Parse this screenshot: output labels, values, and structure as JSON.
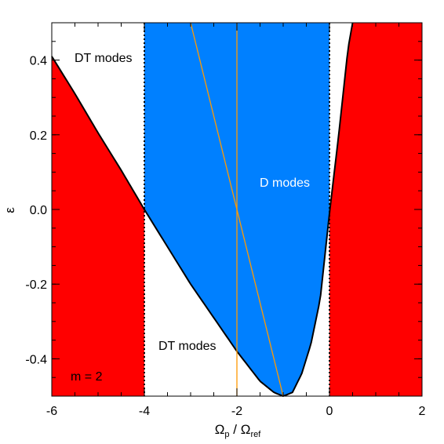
{
  "chart_data": {
    "type": "area",
    "title": "",
    "xlabel": {
      "main": "Ω",
      "sub1": "p",
      "mid": " / Ω",
      "sub2": "ref"
    },
    "ylabel": "ε",
    "xlim": [
      -6,
      2
    ],
    "ylim": [
      -0.5,
      0.5
    ],
    "x_ticks": [
      -6,
      -4,
      -2,
      0,
      2
    ],
    "x_tick_labels": [
      "-6",
      "-4",
      "-2",
      "0",
      "2"
    ],
    "y_ticks": [
      -0.4,
      -0.2,
      0.0,
      0.2,
      0.4
    ],
    "y_tick_labels": [
      "-0.4",
      "-0.2",
      "0.0",
      "0.2",
      "0.4"
    ],
    "boundary_curve": {
      "name": "",
      "x": [
        -6.0,
        -5.5,
        -5.0,
        -4.5,
        -4.0,
        -3.5,
        -3.0,
        -2.5,
        -2.0,
        -1.5,
        -1.2,
        -1.0,
        -0.8,
        -0.6,
        -0.4,
        -0.2,
        0.0,
        0.2,
        0.4,
        0.5
      ],
      "y": [
        0.41,
        0.31,
        0.205,
        0.105,
        0.0,
        -0.1,
        -0.2,
        -0.29,
        -0.38,
        -0.46,
        -0.49,
        -0.5,
        -0.49,
        -0.44,
        -0.36,
        -0.24,
        -0.01,
        0.2,
        0.43,
        0.5
      ]
    },
    "regions": [
      {
        "label": "",
        "color": "#ff0000",
        "description_polygon": "left of x=-4 below curve"
      },
      {
        "label": "",
        "color": "#ff0000",
        "description_polygon": "right of x=0 below curve"
      },
      {
        "label": "D modes",
        "color": "#0080ff"
      },
      {
        "label": "DT modes",
        "color": "#ffffff"
      }
    ],
    "vertical_dotted_lines": [
      -4,
      0
    ],
    "orange_vertical_line": -2,
    "orange_diagonal_line": {
      "x": [
        -3.0,
        -1.0
      ],
      "y": [
        0.5,
        -0.5
      ]
    },
    "annotations": {
      "dt_top": "DT modes",
      "dt_bottom": "DT modes",
      "d_modes": "D modes",
      "m_label": "m = 2"
    },
    "colors": {
      "red": "#ff0000",
      "blue": "#0080ff",
      "orange": "#ff9900",
      "curve": "#000000"
    }
  }
}
